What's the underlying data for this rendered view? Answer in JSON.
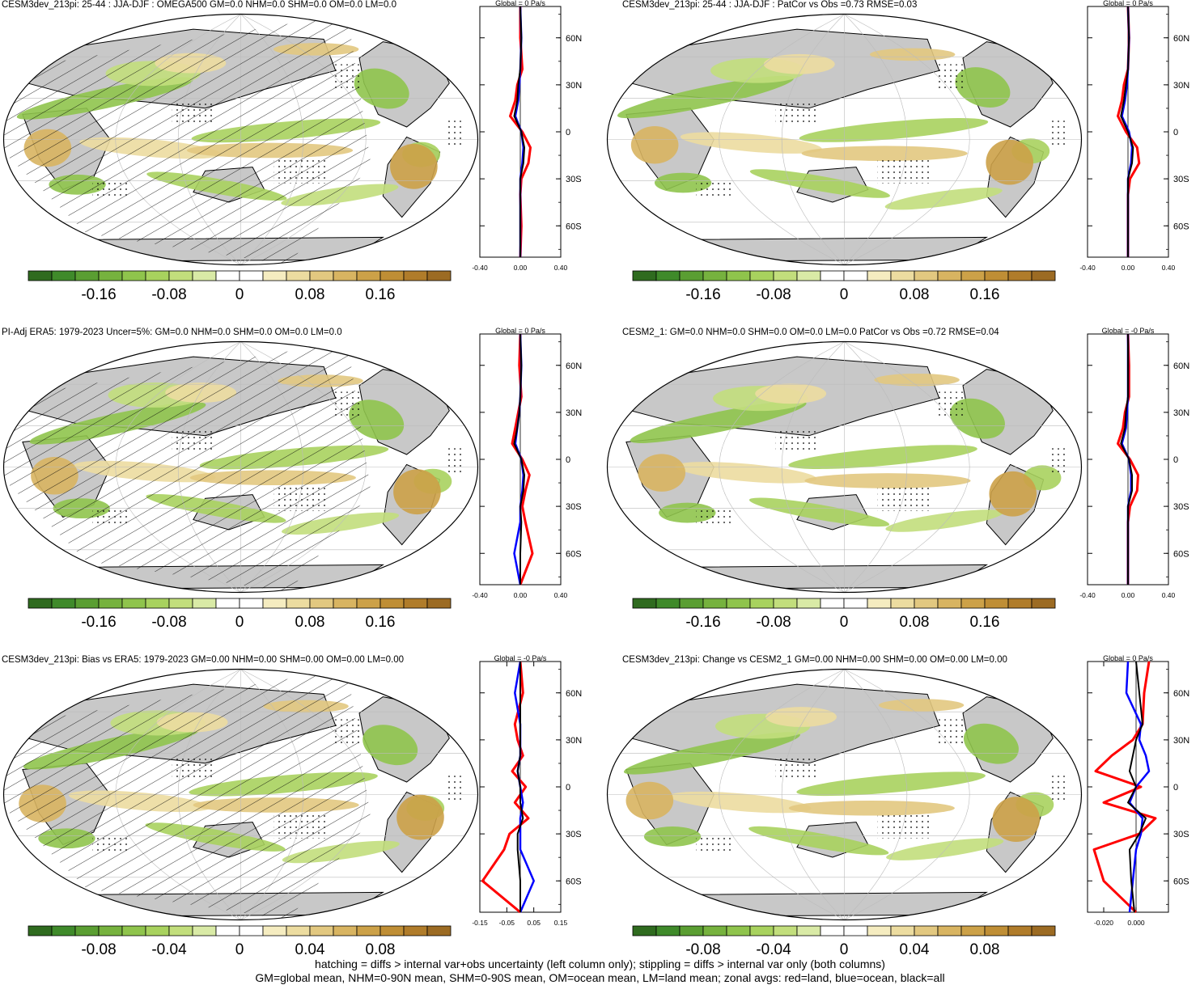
{
  "panels": [
    {
      "title": "CESM3dev_213pi: 25-44 : JJA-DJF : OMEGA500 GM=0.0 NHM=0.0 SHM=0.0 OM=0.0 LM=0.0",
      "zonal_title": "Global = 0 Pa/s",
      "hatching": true,
      "zonal_xticks": [
        "-0.40",
        "0.00",
        "0.40"
      ],
      "zonal_xlim": [
        -0.4,
        0.4
      ],
      "colorbar_ticks": [
        "-0.16",
        "-0.08",
        "0",
        "0.08",
        "0.16"
      ]
    },
    {
      "title": "CESM3dev_213pi: 25-44 : JJA-DJF : PatCor vs Obs =0.73 RMSE=0.03",
      "zonal_title": "Global = 0 Pa/s",
      "hatching": false,
      "zonal_xticks": [
        "-0.40",
        "0.00",
        "0.40"
      ],
      "zonal_xlim": [
        -0.4,
        0.4
      ],
      "colorbar_ticks": [
        "-0.16",
        "-0.08",
        "0",
        "0.08",
        "0.16"
      ]
    },
    {
      "title": "PI-Adj ERA5: 1979-2023 Uncer=5%: GM=0.0 NHM=0.0 SHM=0.0 OM=0.0 LM=0.0",
      "zonal_title": "Global = 0 Pa/s",
      "hatching": true,
      "zonal_xticks": [
        "-0.40",
        "0.00",
        "0.40"
      ],
      "zonal_xlim": [
        -0.4,
        0.4
      ],
      "colorbar_ticks": [
        "-0.16",
        "-0.08",
        "0",
        "0.08",
        "0.16"
      ]
    },
    {
      "title": "CESM2_1: GM=0.0 NHM=0.0 SHM=0.0 OM=0.0 LM=0.0 PatCor vs Obs =0.72 RMSE=0.04",
      "zonal_title": "Global = -0 Pa/s",
      "hatching": false,
      "zonal_xticks": [
        "-0.40",
        "0.00",
        "0.40"
      ],
      "zonal_xlim": [
        -0.4,
        0.4
      ],
      "colorbar_ticks": [
        "-0.16",
        "-0.08",
        "0",
        "0.08",
        "0.16"
      ]
    },
    {
      "title": "CESM3dev_213pi: Bias vs ERA5: 1979-2023 GM=0.00 NHM=0.00 SHM=0.00 OM=0.00 LM=0.00",
      "zonal_title": "Global = -0 Pa/s",
      "hatching": true,
      "zonal_xticks": [
        "-0.15",
        "-0.05",
        "0.05",
        "0.15"
      ],
      "zonal_xlim": [
        -0.15,
        0.15
      ],
      "colorbar_ticks": [
        "-0.08",
        "-0.04",
        "0",
        "0.04",
        "0.08"
      ]
    },
    {
      "title": "CESM3dev_213pi: Change vs CESM2_1 GM=0.00 NHM=0.00 SHM=0.00 OM=0.00 LM=0.00",
      "zonal_title": "Global = 0 Pa/s",
      "hatching": false,
      "zonal_xticks": [
        "-0.020",
        "0.000"
      ],
      "zonal_xlim": [
        -0.03,
        0.02
      ],
      "colorbar_ticks": [
        "-0.08",
        "-0.04",
        "0",
        "0.04",
        "0.08"
      ]
    }
  ],
  "zonal_yticks": [
    "60N",
    "30N",
    "0",
    "30S",
    "60S"
  ],
  "colors": {
    "land": "#c8c8c8",
    "red_land": "#ff0000",
    "blue_ocean": "#0000ff",
    "black_all": "#000000",
    "colorbar": [
      "#2f6b1f",
      "#3f8a2a",
      "#5a9e32",
      "#76b23e",
      "#8fc44c",
      "#a8d25e",
      "#c2de7c",
      "#d9eaa6",
      "#ffffff",
      "#ffffff",
      "#f5ecc0",
      "#ecdca0",
      "#e2c880",
      "#d8b461",
      "#cca148",
      "#bf8e35",
      "#b07c2a",
      "#9c6b23"
    ]
  },
  "chart_data": [
    {
      "type": "heatmap",
      "panel": 1,
      "zonal_avgs": {
        "lat": [
          80,
          60,
          40,
          30,
          20,
          10,
          0,
          -10,
          -20,
          -30,
          -40,
          -60,
          -80
        ],
        "land": [
          0,
          0,
          0.02,
          -0.03,
          -0.05,
          -0.1,
          0.02,
          0.1,
          0.08,
          0.01,
          0,
          0.01,
          0
        ],
        "ocean": [
          0,
          0.01,
          0,
          -0.01,
          -0.02,
          -0.05,
          0.01,
          0.03,
          0.02,
          0,
          0,
          0,
          0
        ],
        "all": [
          0,
          0.01,
          0,
          -0.02,
          -0.03,
          -0.06,
          0.01,
          0.04,
          0.03,
          0,
          0,
          0,
          0
        ]
      }
    },
    {
      "type": "heatmap",
      "panel": 2,
      "zonal_avgs": {
        "lat": [
          80,
          60,
          40,
          30,
          20,
          10,
          0,
          -10,
          -20,
          -30,
          -40,
          -60,
          -80
        ],
        "land": [
          0,
          0.01,
          0,
          -0.04,
          -0.06,
          -0.1,
          -0.02,
          0.09,
          0.11,
          0.02,
          0,
          0,
          0
        ],
        "ocean": [
          0,
          0.01,
          0,
          -0.01,
          -0.03,
          -0.06,
          0.01,
          0.04,
          0.03,
          0,
          0,
          0,
          0
        ],
        "all": [
          0,
          0.01,
          0,
          -0.02,
          -0.04,
          -0.07,
          0,
          0.05,
          0.04,
          0,
          0,
          0,
          0
        ]
      }
    },
    {
      "type": "heatmap",
      "panel": 3,
      "zonal_avgs": {
        "lat": [
          80,
          60,
          40,
          30,
          20,
          10,
          0,
          -10,
          -20,
          -30,
          -40,
          -60,
          -80
        ],
        "land": [
          0,
          -0.01,
          0.01,
          -0.02,
          -0.05,
          -0.08,
          0.02,
          0.09,
          0.05,
          0.02,
          0.05,
          0.12,
          0
        ],
        "ocean": [
          0,
          0.01,
          0,
          -0.01,
          -0.03,
          -0.05,
          0.01,
          0.03,
          0.02,
          0,
          0,
          -0.06,
          0
        ],
        "all": [
          0,
          0.01,
          0,
          -0.01,
          -0.03,
          -0.06,
          0.01,
          0.04,
          0.03,
          0,
          0.01,
          0,
          0
        ]
      }
    },
    {
      "type": "heatmap",
      "panel": 4,
      "zonal_avgs": {
        "lat": [
          80,
          60,
          40,
          30,
          20,
          10,
          0,
          -10,
          -20,
          -30,
          -40,
          -60,
          -80
        ],
        "land": [
          0,
          0.01,
          0.01,
          -0.03,
          -0.05,
          -0.1,
          0.02,
          0.1,
          0.09,
          0.02,
          0,
          0,
          0
        ],
        "ocean": [
          0,
          0,
          0,
          -0.01,
          -0.02,
          -0.06,
          0.01,
          0.03,
          0.03,
          0,
          0,
          0,
          0
        ],
        "all": [
          0,
          0,
          0,
          -0.02,
          -0.03,
          -0.07,
          0.01,
          0.04,
          0.04,
          0,
          0,
          0,
          0
        ]
      }
    },
    {
      "type": "heatmap",
      "panel": 5,
      "zonal_avgs": {
        "lat": [
          80,
          60,
          40,
          30,
          20,
          10,
          0,
          -10,
          -20,
          -30,
          -40,
          -60,
          -80
        ],
        "land": [
          0,
          0.01,
          -0.02,
          -0.01,
          0.01,
          -0.03,
          0.02,
          -0.02,
          0.03,
          -0.04,
          -0.06,
          -0.14,
          0
        ],
        "ocean": [
          0,
          -0.02,
          0,
          0,
          0,
          -0.01,
          0,
          0.01,
          0,
          0,
          0,
          0.05,
          0
        ],
        "all": [
          0,
          0,
          0,
          0,
          0,
          -0.01,
          0,
          0,
          0.01,
          -0.01,
          -0.01,
          0,
          0
        ]
      }
    },
    {
      "type": "heatmap",
      "panel": 6,
      "zonal_avgs": {
        "lat": [
          80,
          60,
          40,
          30,
          20,
          10,
          0,
          -10,
          -20,
          -30,
          -40,
          -60,
          -80
        ],
        "land": [
          0.008,
          0.005,
          0.004,
          -0.002,
          -0.015,
          -0.025,
          0.003,
          -0.02,
          0.012,
          0.002,
          -0.026,
          -0.02,
          0
        ],
        "ocean": [
          -0.005,
          -0.006,
          0.003,
          0.002,
          0.006,
          0.008,
          0,
          -0.004,
          0.004,
          0.003,
          0,
          -0.002,
          -0.004
        ],
        "all": [
          0,
          0.002,
          0.004,
          0,
          -0.002,
          -0.004,
          0,
          -0.005,
          0.006,
          0.002,
          -0.004,
          -0.003,
          -0.001
        ]
      }
    }
  ],
  "footer": {
    "line1": "hatching = diffs > internal var+obs uncertainty (left column only); stippling = diffs > internal var only (both columns)",
    "line2": "GM=global mean, NHM=0-90N mean, SHM=0-90S mean, OM=ocean mean, LM=land mean; zonal avgs: red=land, blue=ocean, black=all"
  }
}
